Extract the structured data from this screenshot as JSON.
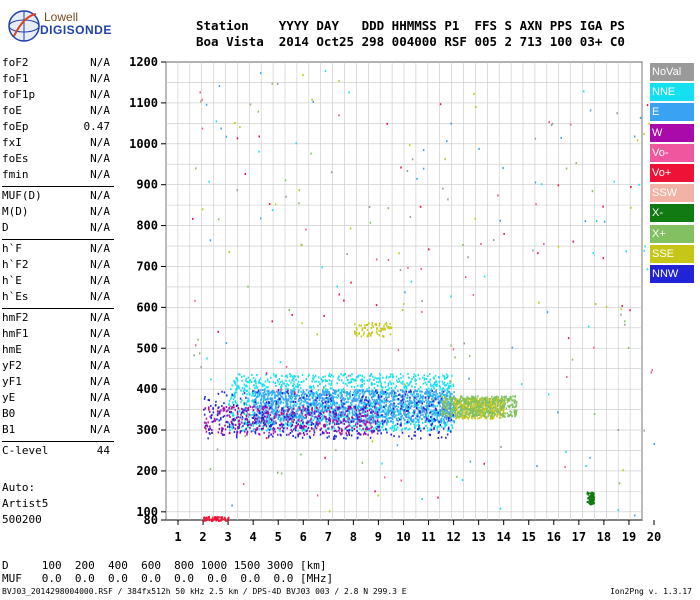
{
  "logo": {
    "line1": "Lowell",
    "line2": "DIGISONDE"
  },
  "header": {
    "line1": "Station    YYYY DAY   DDD HHMMSS P1  FFS S AXN PPS IGA PS",
    "line2": "Boa Vista  2014 Oct25 298 004000 RSF 005 2 713 100 03+ C0"
  },
  "params": [
    {
      "group": [
        {
          "label": "foF2",
          "value": "N/A"
        },
        {
          "label": "foF1",
          "value": "N/A"
        },
        {
          "label": "foF1p",
          "value": "N/A"
        },
        {
          "label": "foE",
          "value": "N/A"
        },
        {
          "label": "foEp",
          "value": "0.47"
        },
        {
          "label": "fxI",
          "value": "N/A"
        },
        {
          "label": "foEs",
          "value": "N/A"
        },
        {
          "label": "fmin",
          "value": "N/A"
        }
      ]
    },
    {
      "group": [
        {
          "label": "MUF(D)",
          "value": "N/A"
        },
        {
          "label": "M(D)",
          "value": "N/A"
        },
        {
          "label": "D",
          "value": "N/A"
        }
      ]
    },
    {
      "group": [
        {
          "label": "h`F",
          "value": "N/A"
        },
        {
          "label": "h`F2",
          "value": "N/A"
        },
        {
          "label": "h`E",
          "value": "N/A"
        },
        {
          "label": "h`Es",
          "value": "N/A"
        }
      ]
    },
    {
      "group": [
        {
          "label": "hmF2",
          "value": "N/A"
        },
        {
          "label": "hmF1",
          "value": "N/A"
        },
        {
          "label": "hmE",
          "value": "N/A"
        },
        {
          "label": "yF2",
          "value": "N/A"
        },
        {
          "label": "yF1",
          "value": "N/A"
        },
        {
          "label": "yE",
          "value": "N/A"
        },
        {
          "label": "B0",
          "value": "N/A"
        },
        {
          "label": "B1",
          "value": "N/A"
        }
      ]
    },
    {
      "group": [
        {
          "label": "C-level",
          "value": "44"
        }
      ]
    }
  ],
  "auto": {
    "line1": "Auto:",
    "line2": "Artist5",
    "line3": "500200"
  },
  "d_row": "D     100  200  400  600  800 1000 1500 3000 [km]",
  "muf_row": "MUF   0.0  0.0  0.0  0.0  0.0  0.0  0.0  0.0 [MHz]",
  "footer": "BVJ03_2014298004000.RSF / 384fx512h 50 kHz 2.5 km / DPS-4D BVJ03 003 / 2.8 N 299.3 E",
  "version": "Ion2Png v. 1.3.17",
  "legend": [
    {
      "label": "NoVal",
      "color": "#9a9a9a"
    },
    {
      "label": "NNE",
      "color": "#14e0f0"
    },
    {
      "label": "E",
      "color": "#3aa2f2"
    },
    {
      "label": "W",
      "color": "#aa0aaa"
    },
    {
      "label": "Vo-",
      "color": "#f0569e"
    },
    {
      "label": "Vo+",
      "color": "#ee1336"
    },
    {
      "label": "SSW",
      "color": "#f2b2a6"
    },
    {
      "label": "X-",
      "color": "#127a12"
    },
    {
      "label": "X+",
      "color": "#82c062"
    },
    {
      "label": "SSE",
      "color": "#c6c616"
    },
    {
      "label": "NNW",
      "color": "#2222d6"
    }
  ],
  "chart_data": {
    "type": "scatter",
    "title": "",
    "xlabel": "",
    "ylabel": "",
    "x_ticks": [
      "1",
      "2",
      "3",
      "4",
      "5",
      "6",
      "7",
      "8",
      "9",
      "10",
      "11",
      "12",
      "13",
      "14",
      "15",
      "16",
      "17",
      "18",
      "19",
      "20"
    ],
    "y_ticks": [
      "80",
      "100",
      "200",
      "300",
      "400",
      "500",
      "600",
      "700",
      "800",
      "900",
      "1000",
      "1100",
      "1200"
    ],
    "xlim": [
      1,
      20
    ],
    "ylim": [
      80,
      1200
    ],
    "grid": true,
    "legend_position": "right",
    "echo_clusters": [
      {
        "series": "NNE",
        "x_range": [
          3,
          12
        ],
        "y_range": [
          300,
          440
        ],
        "density": "high"
      },
      {
        "series": "E",
        "x_range": [
          4,
          12
        ],
        "y_range": [
          320,
          400
        ],
        "density": "high"
      },
      {
        "series": "W",
        "x_range": [
          2,
          9
        ],
        "y_range": [
          290,
          360
        ],
        "density": "medium"
      },
      {
        "series": "NNW",
        "x_range": [
          2,
          12
        ],
        "y_range": [
          280,
          400
        ],
        "density": "medium"
      },
      {
        "series": "SSE",
        "x_range": [
          12,
          14
        ],
        "y_range": [
          330,
          380
        ],
        "density": "medium"
      },
      {
        "series": "X+",
        "x_range": [
          11.5,
          14.5
        ],
        "y_range": [
          335,
          385
        ],
        "density": "medium"
      },
      {
        "series": "SSE",
        "x_range": [
          8,
          9.5
        ],
        "y_range": [
          530,
          565
        ],
        "density": "low"
      },
      {
        "series": "Vo+",
        "x_range": [
          2,
          3
        ],
        "y_range": [
          80,
          90
        ],
        "density": "low"
      },
      {
        "series": "X-",
        "x_range": [
          17.3,
          17.6
        ],
        "y_range": [
          120,
          150
        ],
        "density": "low"
      }
    ]
  }
}
